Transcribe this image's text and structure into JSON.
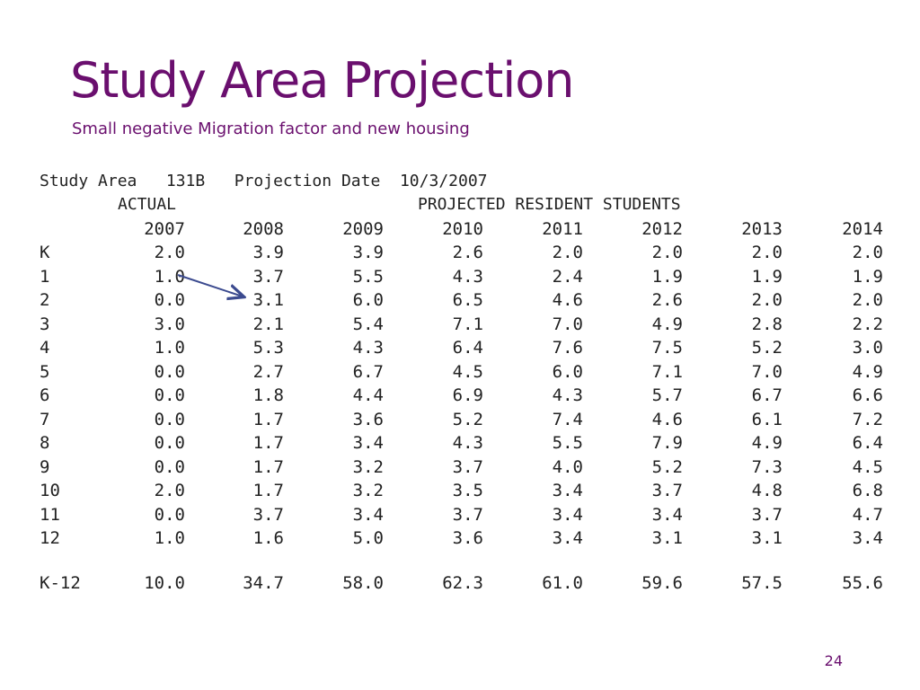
{
  "slide": {
    "title": "Study Area Projection",
    "subtitle": "Small negative Migration factor and new housing",
    "page_number": "24"
  },
  "printout": {
    "header_line": "Study Area   131B   Projection Date  10/3/2007",
    "actual_label": "ACTUAL",
    "projected_label": "PROJECTED RESIDENT STUDENTS",
    "years": [
      "2007",
      "2008",
      "2009",
      "2010",
      "2011",
      "2012",
      "2013",
      "2014"
    ],
    "rows": [
      {
        "label": "K",
        "values": [
          "2.0",
          "3.9",
          "3.9",
          "2.6",
          "2.0",
          "2.0",
          "2.0",
          "2.0"
        ]
      },
      {
        "label": "1",
        "values": [
          "1.0",
          "3.7",
          "5.5",
          "4.3",
          "2.4",
          "1.9",
          "1.9",
          "1.9"
        ]
      },
      {
        "label": "2",
        "values": [
          "0.0",
          "3.1",
          "6.0",
          "6.5",
          "4.6",
          "2.6",
          "2.0",
          "2.0"
        ]
      },
      {
        "label": "3",
        "values": [
          "3.0",
          "2.1",
          "5.4",
          "7.1",
          "7.0",
          "4.9",
          "2.8",
          "2.2"
        ]
      },
      {
        "label": "4",
        "values": [
          "1.0",
          "5.3",
          "4.3",
          "6.4",
          "7.6",
          "7.5",
          "5.2",
          "3.0"
        ]
      },
      {
        "label": "5",
        "values": [
          "0.0",
          "2.7",
          "6.7",
          "4.5",
          "6.0",
          "7.1",
          "7.0",
          "4.9"
        ]
      },
      {
        "label": "6",
        "values": [
          "0.0",
          "1.8",
          "4.4",
          "6.9",
          "4.3",
          "5.7",
          "6.7",
          "6.6"
        ]
      },
      {
        "label": "7",
        "values": [
          "0.0",
          "1.7",
          "3.6",
          "5.2",
          "7.4",
          "4.6",
          "6.1",
          "7.2"
        ]
      },
      {
        "label": "8",
        "values": [
          "0.0",
          "1.7",
          "3.4",
          "4.3",
          "5.5",
          "7.9",
          "4.9",
          "6.4"
        ]
      },
      {
        "label": "9",
        "values": [
          "0.0",
          "1.7",
          "3.2",
          "3.7",
          "4.0",
          "5.2",
          "7.3",
          "4.5"
        ]
      },
      {
        "label": "10",
        "values": [
          "2.0",
          "1.7",
          "3.2",
          "3.5",
          "3.4",
          "3.7",
          "4.8",
          "6.8"
        ]
      },
      {
        "label": "11",
        "values": [
          "0.0",
          "3.7",
          "3.4",
          "3.7",
          "3.4",
          "3.4",
          "3.7",
          "4.7"
        ]
      },
      {
        "label": "12",
        "values": [
          "1.0",
          "1.6",
          "5.0",
          "3.6",
          "3.4",
          "3.1",
          "3.1",
          "3.4"
        ]
      }
    ],
    "total": {
      "label": "K-12",
      "values": [
        "10.0",
        "34.7",
        "58.0",
        "62.3",
        "61.0",
        "59.6",
        "57.5",
        "55.6"
      ]
    }
  },
  "colors": {
    "title": "#6a0f6e",
    "arrow": "#3b4a8f",
    "text": "#222222"
  }
}
